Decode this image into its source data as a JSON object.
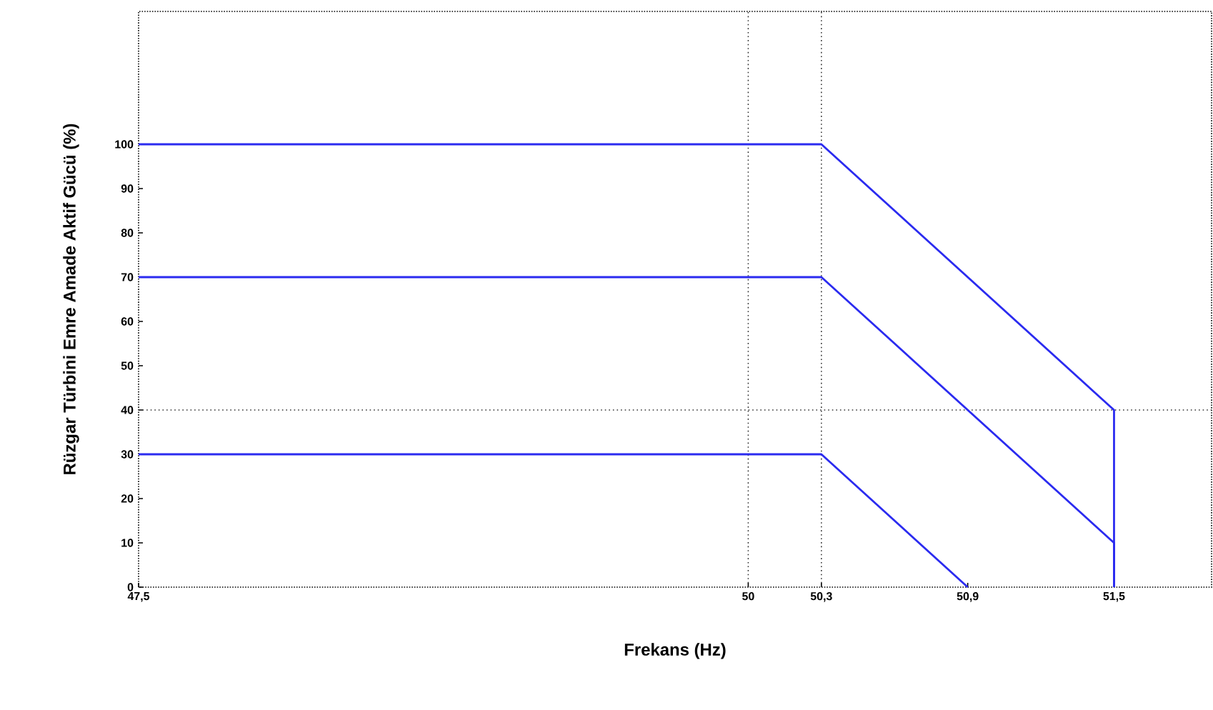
{
  "chart_data": {
    "type": "line",
    "xlabel": "Frekans (Hz)",
    "ylabel": "Rüzgar Türbini Emre Amade Aktif Gücü (%)",
    "xlim": [
      47.5,
      51.9
    ],
    "ylim": [
      0,
      130
    ],
    "xticks": [
      {
        "value": 47.5,
        "label": "47,5"
      },
      50,
      {
        "value": 50.3,
        "label": "50,3"
      },
      {
        "value": 50.9,
        "label": "50,9"
      },
      {
        "value": 51.5,
        "label": "51,5"
      }
    ],
    "yticks": [
      0,
      10,
      20,
      30,
      40,
      50,
      60,
      70,
      80,
      90,
      100
    ],
    "series": [
      {
        "color": "#2b2bf0",
        "x": [
          47.5,
          50.3,
          51.5,
          51.5
        ],
        "values": [
          100,
          100,
          40,
          0
        ]
      },
      {
        "color": "#2b2bf0",
        "x": [
          47.5,
          50.3,
          51.5,
          51.5
        ],
        "values": [
          70,
          70,
          10,
          0
        ]
      },
      {
        "color": "#2b2bf0",
        "x": [
          47.5,
          50.3,
          50.9
        ],
        "values": [
          30,
          30,
          0
        ]
      }
    ],
    "ref_lines": [
      {
        "axis": "x",
        "value": 50,
        "color": "#333333",
        "line_style": "dotted"
      },
      {
        "axis": "x",
        "value": 50.3,
        "color": "#333333",
        "line_style": "dotted"
      },
      {
        "axis": "y",
        "value": 40,
        "color": "#333333",
        "line_style": "dotted"
      }
    ],
    "grid": false,
    "marker": "none",
    "line_style": "solid"
  }
}
